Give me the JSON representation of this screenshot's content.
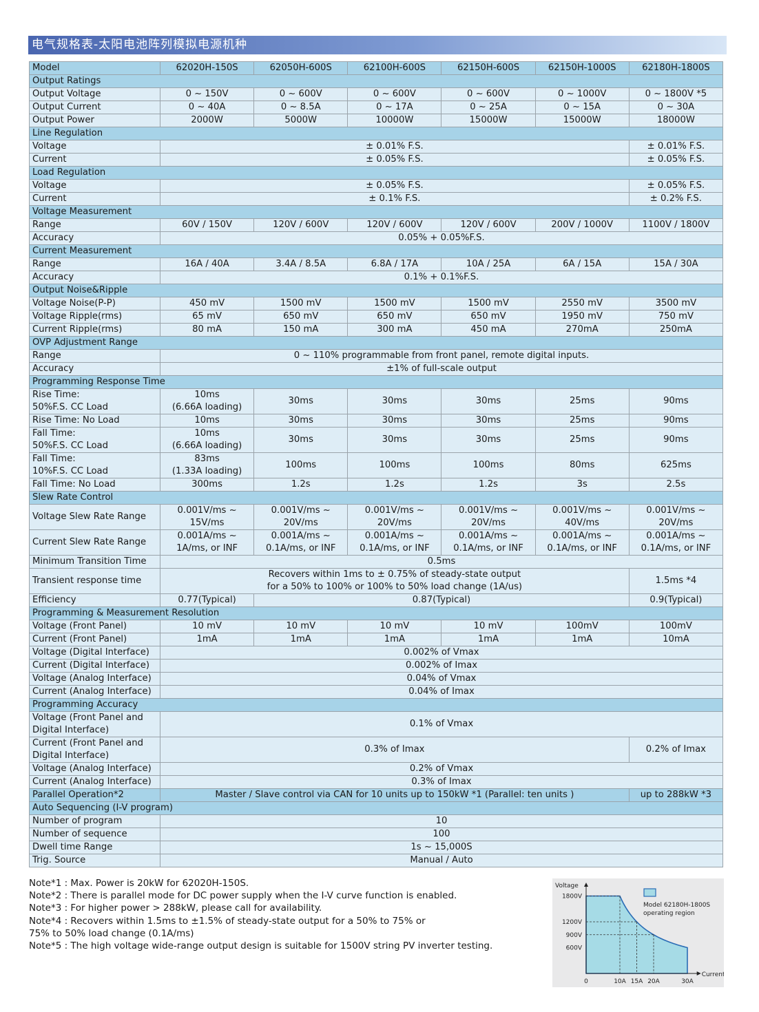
{
  "title": "电气规格表-太阳电池阵列模拟电源机种",
  "table": {
    "rows": [
      {
        "type": "hdr",
        "cells": [
          {
            "t": "Model"
          },
          {
            "t": "62020H-150S"
          },
          {
            "t": "62050H-600S"
          },
          {
            "t": "62100H-600S"
          },
          {
            "t": "62150H-600S"
          },
          {
            "t": "62150H-1000S"
          },
          {
            "t": "62180H-1800S"
          }
        ]
      },
      {
        "type": "section",
        "cells": [
          {
            "t": "Output Ratings",
            "span": 7
          }
        ]
      },
      {
        "cells": [
          {
            "t": "Output Voltage"
          },
          {
            "t": "0 ~ 150V"
          },
          {
            "t": "0 ~ 600V"
          },
          {
            "t": "0 ~ 600V"
          },
          {
            "t": "0 ~ 600V"
          },
          {
            "t": "0 ~ 1000V"
          },
          {
            "t": "0 ~ 1800V *5"
          }
        ]
      },
      {
        "cells": [
          {
            "t": "Output Current"
          },
          {
            "t": "0 ~ 40A"
          },
          {
            "t": "0 ~ 8.5A"
          },
          {
            "t": "0 ~ 17A"
          },
          {
            "t": "0 ~ 25A"
          },
          {
            "t": "0 ~ 15A"
          },
          {
            "t": "0 ~ 30A"
          }
        ]
      },
      {
        "cells": [
          {
            "t": "Output Power"
          },
          {
            "t": "2000W"
          },
          {
            "t": "5000W"
          },
          {
            "t": "10000W"
          },
          {
            "t": "15000W"
          },
          {
            "t": "15000W"
          },
          {
            "t": "18000W"
          }
        ]
      },
      {
        "type": "section",
        "cells": [
          {
            "t": "Line Regulation",
            "span": 7
          }
        ]
      },
      {
        "cells": [
          {
            "t": "Voltage"
          },
          {
            "t": "± 0.01% F.S.",
            "span": 5
          },
          {
            "t": "± 0.01% F.S."
          }
        ]
      },
      {
        "cells": [
          {
            "t": "Current"
          },
          {
            "t": "± 0.05% F.S.",
            "span": 5
          },
          {
            "t": "± 0.05% F.S."
          }
        ]
      },
      {
        "type": "section",
        "cells": [
          {
            "t": "Load Regulation",
            "span": 7
          }
        ]
      },
      {
        "cells": [
          {
            "t": "Voltage"
          },
          {
            "t": "± 0.05% F.S.",
            "span": 5
          },
          {
            "t": "± 0.05% F.S."
          }
        ]
      },
      {
        "cells": [
          {
            "t": "Current"
          },
          {
            "t": "± 0.1% F.S.",
            "span": 5
          },
          {
            "t": "± 0.2% F.S."
          }
        ]
      },
      {
        "type": "section",
        "cells": [
          {
            "t": "Voltage Measurement",
            "span": 7
          }
        ]
      },
      {
        "cells": [
          {
            "t": "Range"
          },
          {
            "t": "60V / 150V"
          },
          {
            "t": "120V / 600V"
          },
          {
            "t": "120V / 600V"
          },
          {
            "t": "120V / 600V"
          },
          {
            "t": "200V / 1000V"
          },
          {
            "t": "1100V / 1800V"
          }
        ]
      },
      {
        "cells": [
          {
            "t": "Accuracy"
          },
          {
            "t": "0.05% + 0.05%F.S.",
            "span": 6
          }
        ]
      },
      {
        "type": "section",
        "cells": [
          {
            "t": "Current Measurement",
            "span": 7
          }
        ]
      },
      {
        "cells": [
          {
            "t": "Range"
          },
          {
            "t": "16A / 40A"
          },
          {
            "t": "3.4A / 8.5A"
          },
          {
            "t": "6.8A / 17A"
          },
          {
            "t": "10A / 25A"
          },
          {
            "t": "6A / 15A"
          },
          {
            "t": "15A / 30A"
          }
        ]
      },
      {
        "cells": [
          {
            "t": "Accuracy"
          },
          {
            "t": "0.1% + 0.1%F.S.",
            "span": 6
          }
        ]
      },
      {
        "type": "section",
        "cells": [
          {
            "t": "Output Noise&Ripple",
            "span": 7
          }
        ]
      },
      {
        "cells": [
          {
            "t": "Voltage Noise(P-P)"
          },
          {
            "t": "450 mV"
          },
          {
            "t": "1500 mV"
          },
          {
            "t": "1500 mV"
          },
          {
            "t": "1500 mV"
          },
          {
            "t": "2550 mV"
          },
          {
            "t": "3500 mV"
          }
        ]
      },
      {
        "cells": [
          {
            "t": "Voltage Ripple(rms)"
          },
          {
            "t": "65 mV"
          },
          {
            "t": "650 mV"
          },
          {
            "t": "650 mV"
          },
          {
            "t": "650 mV"
          },
          {
            "t": "1950 mV"
          },
          {
            "t": "750 mV"
          }
        ]
      },
      {
        "cells": [
          {
            "t": "Current Ripple(rms)"
          },
          {
            "t": "80 mA"
          },
          {
            "t": "150 mA"
          },
          {
            "t": "300 mA"
          },
          {
            "t": "450 mA"
          },
          {
            "t": "270mA"
          },
          {
            "t": "250mA"
          }
        ]
      },
      {
        "type": "section",
        "cells": [
          {
            "t": "OVP Adjustment Range",
            "span": 7
          }
        ]
      },
      {
        "cells": [
          {
            "t": "Range"
          },
          {
            "t": "0 ~ 110% programmable from front panel, remote digital inputs.",
            "span": 6
          }
        ]
      },
      {
        "cells": [
          {
            "t": "Accuracy"
          },
          {
            "t": "±1% of full-scale output",
            "span": 6
          }
        ]
      },
      {
        "type": "section",
        "cells": [
          {
            "t": "Programming Response Time",
            "span": 7
          }
        ]
      },
      {
        "type": "tall",
        "cells": [
          {
            "t": "Rise Time:\n50%F.S. CC Load"
          },
          {
            "t": "10ms\n(6.66A loading)"
          },
          {
            "t": "30ms"
          },
          {
            "t": "30ms"
          },
          {
            "t": "30ms"
          },
          {
            "t": "25ms"
          },
          {
            "t": "90ms"
          }
        ]
      },
      {
        "cells": [
          {
            "t": "Rise Time: No Load"
          },
          {
            "t": "10ms"
          },
          {
            "t": "30ms"
          },
          {
            "t": "30ms"
          },
          {
            "t": "30ms"
          },
          {
            "t": "25ms"
          },
          {
            "t": "90ms"
          }
        ]
      },
      {
        "type": "tall",
        "cells": [
          {
            "t": "Fall Time:\n50%F.S. CC Load"
          },
          {
            "t": "10ms\n(6.66A loading)"
          },
          {
            "t": "30ms"
          },
          {
            "t": "30ms"
          },
          {
            "t": "30ms"
          },
          {
            "t": "25ms"
          },
          {
            "t": "90ms"
          }
        ]
      },
      {
        "type": "tall",
        "cells": [
          {
            "t": "Fall Time:\n10%F.S. CC Load"
          },
          {
            "t": "83ms\n(1.33A loading)"
          },
          {
            "t": "100ms"
          },
          {
            "t": "100ms"
          },
          {
            "t": "100ms"
          },
          {
            "t": "80ms"
          },
          {
            "t": "625ms"
          }
        ]
      },
      {
        "cells": [
          {
            "t": "Fall Time: No Load"
          },
          {
            "t": "300ms"
          },
          {
            "t": "1.2s"
          },
          {
            "t": "1.2s"
          },
          {
            "t": "1.2s"
          },
          {
            "t": "3s"
          },
          {
            "t": "2.5s"
          }
        ]
      },
      {
        "type": "section",
        "cells": [
          {
            "t": "Slew Rate Control",
            "span": 7
          }
        ]
      },
      {
        "type": "tall",
        "cells": [
          {
            "t": "Voltage Slew Rate Range"
          },
          {
            "t": "0.001V/ms ~\n15V/ms"
          },
          {
            "t": "0.001V/ms ~\n20V/ms"
          },
          {
            "t": "0.001V/ms ~\n20V/ms"
          },
          {
            "t": "0.001V/ms ~\n20V/ms"
          },
          {
            "t": "0.001V/ms ~\n40V/ms"
          },
          {
            "t": "0.001V/ms ~\n20V/ms"
          }
        ]
      },
      {
        "type": "tall",
        "cells": [
          {
            "t": "Current Slew Rate Range"
          },
          {
            "t": "0.001A/ms ~\n1A/ms, or INF"
          },
          {
            "t": "0.001A/ms ~\n0.1A/ms, or INF"
          },
          {
            "t": "0.001A/ms ~\n0.1A/ms, or INF"
          },
          {
            "t": "0.001A/ms ~\n0.1A/ms, or INF"
          },
          {
            "t": "0.001A/ms ~\n0.1A/ms, or INF"
          },
          {
            "t": "0.001A/ms ~\n0.1A/ms, or INF"
          }
        ]
      },
      {
        "cells": [
          {
            "t": "Minimum Transition Time"
          },
          {
            "t": "0.5ms",
            "span": 6
          }
        ]
      },
      {
        "type": "tall",
        "cells": [
          {
            "t": "Transient response time"
          },
          {
            "t": "Recovers within 1ms to ± 0.75% of steady-state output\nfor a 50% to 100% or 100% to 50% load change (1A/us)",
            "span": 5
          },
          {
            "t": "1.5ms *4"
          }
        ]
      },
      {
        "cells": [
          {
            "t": "Efficiency"
          },
          {
            "t": "0.77(Typical)"
          },
          {
            "t": "0.87(Typical)",
            "span": 4
          },
          {
            "t": "0.9(Typical)"
          }
        ]
      },
      {
        "type": "section",
        "cells": [
          {
            "t": "Programming & Measurement Resolution",
            "span": 7
          }
        ]
      },
      {
        "cells": [
          {
            "t": "Voltage (Front Panel)"
          },
          {
            "t": "10 mV"
          },
          {
            "t": "10 mV"
          },
          {
            "t": "10 mV"
          },
          {
            "t": "10 mV"
          },
          {
            "t": "100mV"
          },
          {
            "t": "100mV"
          }
        ]
      },
      {
        "cells": [
          {
            "t": "Current (Front Panel)"
          },
          {
            "t": "1mA"
          },
          {
            "t": "1mA"
          },
          {
            "t": "1mA"
          },
          {
            "t": "1mA"
          },
          {
            "t": "1mA"
          },
          {
            "t": "10mA"
          }
        ]
      },
      {
        "cells": [
          {
            "t": "Voltage (Digital Interface)"
          },
          {
            "t": "0.002% of Vmax",
            "span": 6
          }
        ]
      },
      {
        "cells": [
          {
            "t": "Current (Digital Interface)"
          },
          {
            "t": "0.002% of Imax",
            "span": 6
          }
        ]
      },
      {
        "cells": [
          {
            "t": "Voltage (Analog Interface)"
          },
          {
            "t": "0.04% of Vmax",
            "span": 6
          }
        ]
      },
      {
        "cells": [
          {
            "t": "Current (Analog Interface)"
          },
          {
            "t": "0.04% of Imax",
            "span": 6
          }
        ]
      },
      {
        "type": "section",
        "cells": [
          {
            "t": "Programming Accuracy",
            "span": 7
          }
        ]
      },
      {
        "type": "tall",
        "cells": [
          {
            "t": "Voltage (Front Panel and\nDigital Interface)"
          },
          {
            "t": "0.1% of Vmax",
            "span": 6
          }
        ]
      },
      {
        "type": "tall",
        "cells": [
          {
            "t": "Current (Front Panel and\nDigital Interface)"
          },
          {
            "t": "0.3% of Imax",
            "span": 5
          },
          {
            "t": "0.2% of Imax"
          }
        ]
      },
      {
        "cells": [
          {
            "t": "Voltage (Analog Interface)"
          },
          {
            "t": "0.2% of Vmax",
            "span": 6
          }
        ]
      },
      {
        "cells": [
          {
            "t": "Current (Analog Interface)"
          },
          {
            "t": "0.3% of Imax",
            "span": 6
          }
        ]
      },
      {
        "type": "section",
        "cells": [
          {
            "t": "Parallel Operation*2"
          },
          {
            "t": "Master / Slave control via CAN for 10 units up to 150kW *1  (Parallel: ten units )",
            "span": 5
          },
          {
            "t": "up to 288kW *3"
          }
        ]
      },
      {
        "type": "section",
        "cells": [
          {
            "t": "Auto Sequencing (I-V program)",
            "span": 7
          }
        ]
      },
      {
        "cells": [
          {
            "t": "Number of program"
          },
          {
            "t": "10",
            "span": 6
          }
        ]
      },
      {
        "cells": [
          {
            "t": "Number of sequence"
          },
          {
            "t": "100",
            "span": 6
          }
        ]
      },
      {
        "cells": [
          {
            "t": "Dwell time Range"
          },
          {
            "t": "1s ~ 15,000S",
            "span": 6
          }
        ]
      },
      {
        "cells": [
          {
            "t": "Trig. Source"
          },
          {
            "t": "Manual / Auto",
            "span": 6
          }
        ]
      }
    ]
  },
  "notes": [
    "Note*1 : Max. Power is 20kW for 62020H-150S.",
    "Note*2 : There is parallel mode for DC power supply when the I-V curve function is enabled.",
    "Note*3 : For higher power > 288kW, please call for availability.",
    "Note*4 : Recovers within 1.5ms to ±1.5% of steady-state output for a 50% to 75% or\n75% to 50% load change (0.1A/ms)",
    "Note*5 : The high voltage wide-range output design is suitable for 1500V string PV inverter testing."
  ],
  "chart_data": {
    "type": "area",
    "xlabel": "Current",
    "ylabel": "Voltage",
    "x_ticks": [
      "0",
      "10A",
      "15A",
      "20A",
      "30A"
    ],
    "y_ticks": [
      "1800V",
      "1200V",
      "900V",
      "600V"
    ],
    "legend": "Model 62180H-1800S\noperating region",
    "legend_placement": "top-right",
    "fill_color": "#a6dbe6",
    "line_color": "#2a6bb5",
    "boundary": [
      [
        0,
        1800
      ],
      [
        10,
        1800
      ],
      [
        15,
        1200
      ],
      [
        20,
        900
      ],
      [
        30,
        600
      ]
    ],
    "xlim": [
      0,
      30
    ],
    "ylim": [
      0,
      1800
    ]
  }
}
